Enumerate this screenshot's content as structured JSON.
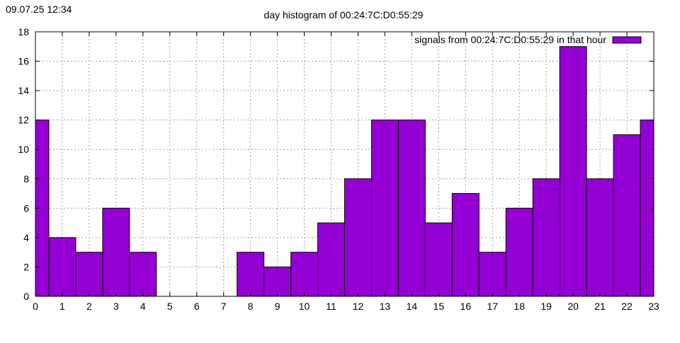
{
  "timestamp": "09.07.25 12:34",
  "chart_data": {
    "type": "bar",
    "title": "day histogram of 00:24:7C:D0:55:29",
    "xlabel": "",
    "ylabel": "",
    "xlim": [
      0,
      23
    ],
    "ylim": [
      0,
      18
    ],
    "x_ticks": [
      0,
      1,
      2,
      3,
      4,
      5,
      6,
      7,
      8,
      9,
      10,
      11,
      12,
      13,
      14,
      15,
      16,
      17,
      18,
      19,
      20,
      21,
      22,
      23
    ],
    "y_ticks": [
      0,
      2,
      4,
      6,
      8,
      10,
      12,
      14,
      16,
      18
    ],
    "grid": true,
    "legend_position": "top-right",
    "series": [
      {
        "name": "signals from 00:24:7C:D0:55:29 in that hour",
        "color": "#9400d3",
        "x": [
          0,
          1,
          2,
          3,
          4,
          5,
          6,
          7,
          8,
          9,
          10,
          11,
          12,
          13,
          14,
          15,
          16,
          17,
          18,
          19,
          20,
          21,
          22,
          23
        ],
        "values": [
          12,
          4,
          3,
          6,
          3,
          0,
          0,
          0,
          3,
          2,
          3,
          5,
          8,
          12,
          12,
          5,
          7,
          3,
          6,
          8,
          17,
          8,
          11,
          12
        ]
      }
    ]
  }
}
